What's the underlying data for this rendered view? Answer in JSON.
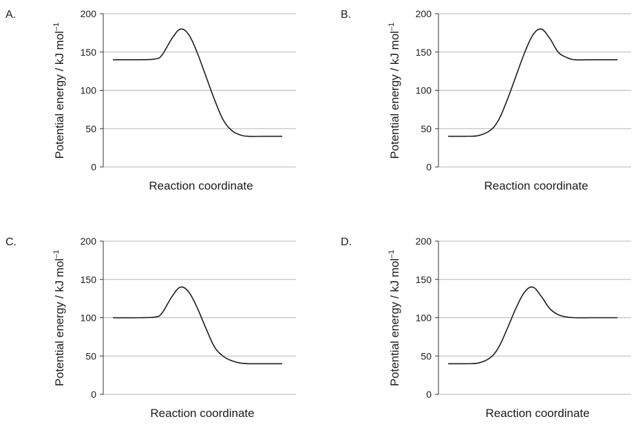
{
  "figure": {
    "colors": {
      "gridline": "#b5b5b5",
      "axis": "#333333",
      "curve": "#1a1a1a"
    }
  },
  "chart_data": [
    {
      "panel_label": "A.",
      "type": "line",
      "xlabel": "Reaction coordinate",
      "ylabel": "Potential energy / kJ mol",
      "ylabel_superscript": "–1",
      "ylim": [
        0,
        200
      ],
      "yticks": [
        "0",
        "50",
        "100",
        "150",
        "200"
      ],
      "grid": true,
      "x_ticks_shown": false,
      "series": [
        {
          "x": [
            0,
            0.15,
            0.25,
            0.29,
            0.35,
            0.4,
            0.45,
            0.5,
            0.55,
            0.6,
            0.65,
            0.7,
            0.75,
            0.8,
            0.9,
            1.0
          ],
          "y": [
            140,
            140,
            141,
            146,
            168,
            180,
            172,
            148,
            118,
            88,
            62,
            48,
            42,
            40,
            40,
            40
          ]
        }
      ]
    },
    {
      "panel_label": "B.",
      "type": "line",
      "xlabel": "Reaction coordinate",
      "ylabel": "Potential energy / kJ mol",
      "ylabel_superscript": "–1",
      "ylim": [
        0,
        200
      ],
      "yticks": [
        "0",
        "50",
        "100",
        "150",
        "200"
      ],
      "grid": true,
      "x_ticks_shown": false,
      "series": [
        {
          "x": [
            0,
            0.1,
            0.18,
            0.25,
            0.3,
            0.35,
            0.4,
            0.45,
            0.5,
            0.55,
            0.6,
            0.65,
            0.7,
            0.75,
            0.85,
            1.0
          ],
          "y": [
            40,
            40,
            41,
            48,
            62,
            88,
            118,
            148,
            172,
            180,
            168,
            150,
            143,
            140,
            140,
            140
          ]
        }
      ]
    },
    {
      "panel_label": "C.",
      "type": "line",
      "xlabel": "Reaction coordinate",
      "ylabel": "Potential energy / kJ mol",
      "ylabel_superscript": "–1",
      "ylim": [
        0,
        200
      ],
      "yticks": [
        "0",
        "50",
        "100",
        "150",
        "200"
      ],
      "grid": true,
      "x_ticks_shown": false,
      "series": [
        {
          "x": [
            0,
            0.15,
            0.25,
            0.29,
            0.35,
            0.4,
            0.45,
            0.5,
            0.55,
            0.6,
            0.65,
            0.7,
            0.75,
            0.8,
            0.9,
            1.0
          ],
          "y": [
            100,
            100,
            101,
            106,
            128,
            140,
            133,
            112,
            86,
            62,
            50,
            44,
            41,
            40,
            40,
            40
          ]
        }
      ]
    },
    {
      "panel_label": "D.",
      "type": "line",
      "xlabel": "Reaction coordinate",
      "ylabel": "Potential energy / kJ mol",
      "ylabel_superscript": "–1",
      "ylim": [
        0,
        200
      ],
      "yticks": [
        "0",
        "50",
        "100",
        "150",
        "200"
      ],
      "grid": true,
      "x_ticks_shown": false,
      "series": [
        {
          "x": [
            0,
            0.1,
            0.18,
            0.25,
            0.3,
            0.35,
            0.4,
            0.45,
            0.5,
            0.55,
            0.6,
            0.65,
            0.7,
            0.75,
            0.85,
            1.0
          ],
          "y": [
            40,
            40,
            41,
            48,
            62,
            86,
            112,
            133,
            140,
            128,
            112,
            104,
            101,
            100,
            100,
            100
          ]
        }
      ]
    }
  ]
}
